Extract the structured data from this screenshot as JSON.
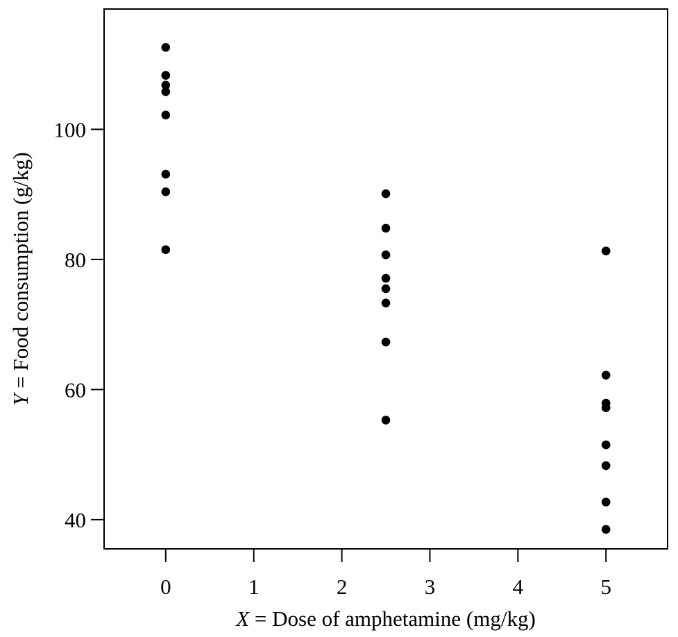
{
  "chart_data": {
    "type": "scatter",
    "title": "",
    "xlabel_var": "X",
    "xlabel_text": "Dose of amphetamine (mg/kg)",
    "ylabel_var": "Y",
    "ylabel_text": "Food consumption (g/kg)",
    "xlim": [
      -0.7,
      5.7
    ],
    "ylim": [
      35.5,
      118.5
    ],
    "x_ticks": [
      0,
      1,
      2,
      3,
      4,
      5
    ],
    "y_ticks": [
      40,
      60,
      80,
      100
    ],
    "grid": false,
    "marker_color": "#000000",
    "points": [
      {
        "x": 0,
        "y": 112.6
      },
      {
        "x": 0,
        "y": 108.3
      },
      {
        "x": 0,
        "y": 106.8
      },
      {
        "x": 0,
        "y": 105.8
      },
      {
        "x": 0,
        "y": 102.2
      },
      {
        "x": 0,
        "y": 93.1
      },
      {
        "x": 0,
        "y": 90.4
      },
      {
        "x": 0,
        "y": 81.5
      },
      {
        "x": 2.5,
        "y": 90.1
      },
      {
        "x": 2.5,
        "y": 84.8
      },
      {
        "x": 2.5,
        "y": 80.7
      },
      {
        "x": 2.5,
        "y": 77.1
      },
      {
        "x": 2.5,
        "y": 75.5
      },
      {
        "x": 2.5,
        "y": 73.3
      },
      {
        "x": 2.5,
        "y": 67.3
      },
      {
        "x": 2.5,
        "y": 55.3
      },
      {
        "x": 5,
        "y": 81.3
      },
      {
        "x": 5,
        "y": 62.2
      },
      {
        "x": 5,
        "y": 57.9
      },
      {
        "x": 5,
        "y": 57.2
      },
      {
        "x": 5,
        "y": 51.5
      },
      {
        "x": 5,
        "y": 48.3
      },
      {
        "x": 5,
        "y": 42.7
      },
      {
        "x": 5,
        "y": 38.5
      }
    ]
  }
}
